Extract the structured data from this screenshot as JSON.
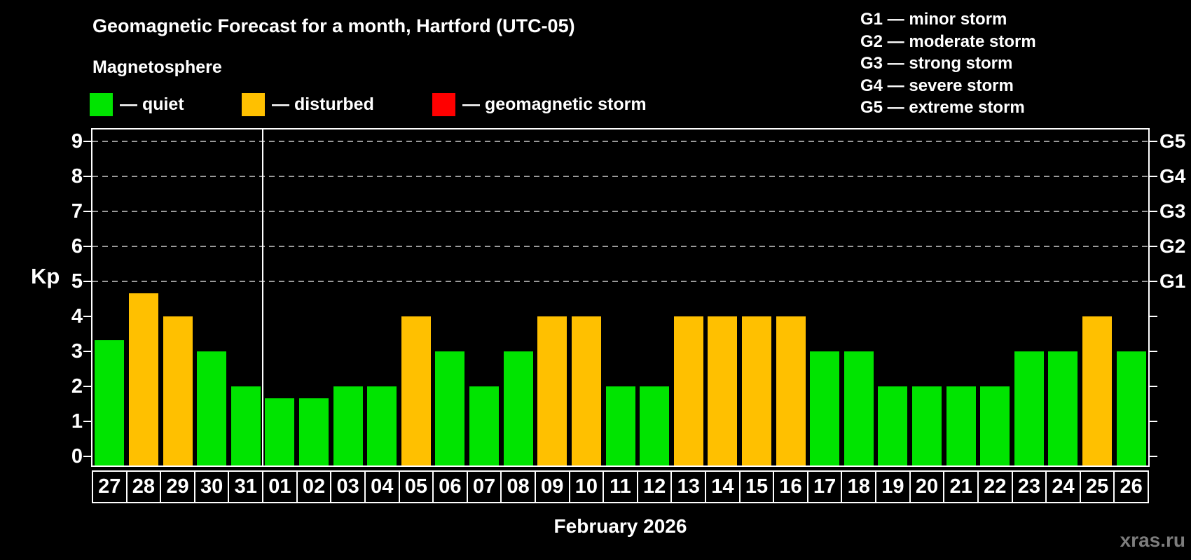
{
  "title": "Geomagnetic Forecast for a month, Hartford (UTC-05)",
  "subtitle": "Magnetosphere",
  "legend": {
    "quiet": "— quiet",
    "disturbed": "— disturbed",
    "storm": "— geomagnetic storm"
  },
  "g_legend": {
    "items": [
      "G1 — minor storm",
      "G2 — moderate storm",
      "G3 — strong storm",
      "G4 — severe storm",
      "G5 — extreme storm"
    ]
  },
  "colors": {
    "quiet": "#00e400",
    "disturbed": "#ffc000",
    "storm": "#ff0000",
    "axis": "#ffffff",
    "grid": "#9a9a9a",
    "watermark": "#7d7d7d",
    "background": "#000000"
  },
  "axis": {
    "kp_label": "Kp",
    "x_label": "February 2026",
    "watermark": "xras.ru"
  },
  "chart_data": {
    "type": "bar",
    "title": "Geomagnetic Forecast for a month, Hartford (UTC-05)",
    "xlabel": "February 2026",
    "ylabel": "Kp",
    "ylim": [
      0,
      9.5
    ],
    "y_ticks": [
      0,
      1,
      2,
      3,
      4,
      5,
      6,
      7,
      8,
      9
    ],
    "grid": "dashed-at-storm-levels",
    "legend_position": "top-left",
    "grid_levels": [
      {
        "label": "G1",
        "kp": 5
      },
      {
        "label": "G2",
        "kp": 6
      },
      {
        "label": "G3",
        "kp": 7
      },
      {
        "label": "G4",
        "kp": 8
      },
      {
        "label": "G5",
        "kp": 9
      }
    ],
    "categories": [
      "27",
      "28",
      "29",
      "30",
      "31",
      "01",
      "02",
      "03",
      "04",
      "05",
      "06",
      "07",
      "08",
      "09",
      "10",
      "11",
      "12",
      "13",
      "14",
      "15",
      "16",
      "17",
      "18",
      "19",
      "20",
      "21",
      "22",
      "23",
      "24",
      "25",
      "26"
    ],
    "values": [
      3.33,
      4.67,
      4,
      3,
      2,
      1.67,
      1.67,
      2,
      2,
      4,
      3,
      2,
      3,
      4,
      4,
      2,
      2,
      4,
      4,
      4,
      4,
      3,
      3,
      2,
      2,
      2,
      2,
      3,
      3,
      4,
      3
    ],
    "status": [
      "quiet",
      "disturbed",
      "disturbed",
      "quiet",
      "quiet",
      "quiet",
      "quiet",
      "quiet",
      "quiet",
      "disturbed",
      "quiet",
      "quiet",
      "quiet",
      "disturbed",
      "disturbed",
      "quiet",
      "quiet",
      "disturbed",
      "disturbed",
      "disturbed",
      "disturbed",
      "quiet",
      "quiet",
      "quiet",
      "quiet",
      "quiet",
      "quiet",
      "quiet",
      "quiet",
      "disturbed",
      "quiet"
    ],
    "month_separator_after_index": 4
  }
}
